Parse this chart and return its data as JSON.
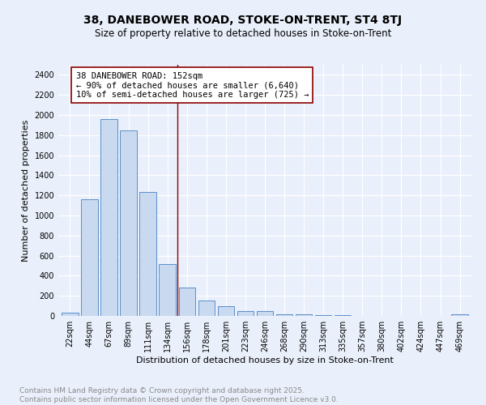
{
  "title1": "38, DANEBOWER ROAD, STOKE-ON-TRENT, ST4 8TJ",
  "title2": "Size of property relative to detached houses in Stoke-on-Trent",
  "xlabel": "Distribution of detached houses by size in Stoke-on-Trent",
  "ylabel": "Number of detached properties",
  "categories": [
    "22sqm",
    "44sqm",
    "67sqm",
    "89sqm",
    "111sqm",
    "134sqm",
    "156sqm",
    "178sqm",
    "201sqm",
    "223sqm",
    "246sqm",
    "268sqm",
    "290sqm",
    "313sqm",
    "335sqm",
    "357sqm",
    "380sqm",
    "402sqm",
    "424sqm",
    "447sqm",
    "469sqm"
  ],
  "values": [
    30,
    1160,
    1960,
    1850,
    1230,
    520,
    280,
    155,
    95,
    45,
    45,
    20,
    15,
    5,
    5,
    3,
    3,
    2,
    2,
    2,
    20
  ],
  "bar_color": "#c9d9f0",
  "bar_edge_color": "#5b8fc9",
  "vline_color": "#8b0000",
  "annotation_text": "38 DANEBOWER ROAD: 152sqm\n← 90% of detached houses are smaller (6,640)\n10% of semi-detached houses are larger (725) →",
  "annotation_box_color": "#ffffff",
  "annotation_box_edge": "#8b0000",
  "ylim": [
    0,
    2500
  ],
  "yticks": [
    0,
    200,
    400,
    600,
    800,
    1000,
    1200,
    1400,
    1600,
    1800,
    2000,
    2200,
    2400
  ],
  "bg_color": "#eaf0fb",
  "footer": "Contains HM Land Registry data © Crown copyright and database right 2025.\nContains public sector information licensed under the Open Government Licence v3.0.",
  "title1_fontsize": 10,
  "title2_fontsize": 8.5,
  "xlabel_fontsize": 8,
  "ylabel_fontsize": 8,
  "tick_fontsize": 7,
  "annotation_fontsize": 7.5,
  "footer_fontsize": 6.5,
  "vline_index": 5.5
}
